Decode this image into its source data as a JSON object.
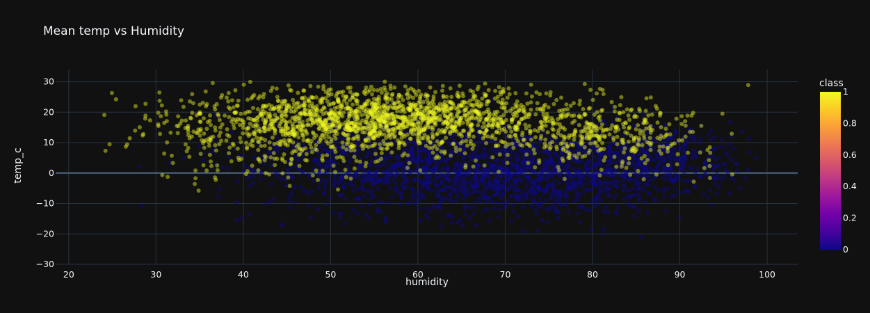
{
  "chart_data": {
    "type": "scatter",
    "title": "Mean temp vs Humidity",
    "xlabel": "humidity",
    "ylabel": "temp_c",
    "xlim": [
      18.5,
      103.5
    ],
    "ylim": [
      -30,
      34
    ],
    "x_ticks": [
      20,
      30,
      40,
      50,
      60,
      70,
      80,
      90,
      100
    ],
    "y_ticks": [
      -30,
      -20,
      -10,
      0,
      10,
      20,
      30
    ],
    "grid": true,
    "colorbar": {
      "title": "class",
      "range": [
        0,
        1
      ],
      "ticks": [
        0,
        0.2,
        0.4,
        0.6,
        0.8,
        1
      ],
      "tick_labels": [
        "0",
        "0.2",
        "0.4",
        "0.6",
        "0.8",
        "1"
      ],
      "colorscale": [
        "#0d0887",
        "#46039f",
        "#7201a8",
        "#9c179e",
        "#bd3786",
        "#d8576b",
        "#ed7953",
        "#fb9f3a",
        "#fdca26",
        "#f0f921"
      ]
    },
    "background": "#111111",
    "grid_color": "#283442",
    "series": [
      {
        "class": 0,
        "color": "#0d0887",
        "note_shape": "dense cloud",
        "clusters": [
          {
            "x_mean": 72,
            "x_sd": 10,
            "y_mean": 0,
            "y_sd": 7,
            "n": 1300
          },
          {
            "x_mean": 55,
            "x_sd": 9,
            "y_mean": 4,
            "y_sd": 8,
            "n": 600
          },
          {
            "x_mean": 88,
            "x_sd": 5,
            "y_mean": 5,
            "y_sd": 6,
            "n": 350
          }
        ],
        "x_range": [
          22,
          99
        ],
        "y_range": [
          -27,
          24
        ]
      },
      {
        "class": 1,
        "color": "#f0f921",
        "clusters": [
          {
            "x_mean": 58,
            "x_sd": 11,
            "y_mean": 18,
            "y_sd": 5,
            "n": 1500
          },
          {
            "x_mean": 45,
            "x_sd": 8,
            "y_mean": 12,
            "y_sd": 7,
            "n": 400
          },
          {
            "x_mean": 82,
            "x_sd": 6,
            "y_mean": 12,
            "y_sd": 5,
            "n": 300
          }
        ],
        "x_range": [
          24,
          99
        ],
        "y_range": [
          -8,
          30
        ]
      }
    ]
  }
}
